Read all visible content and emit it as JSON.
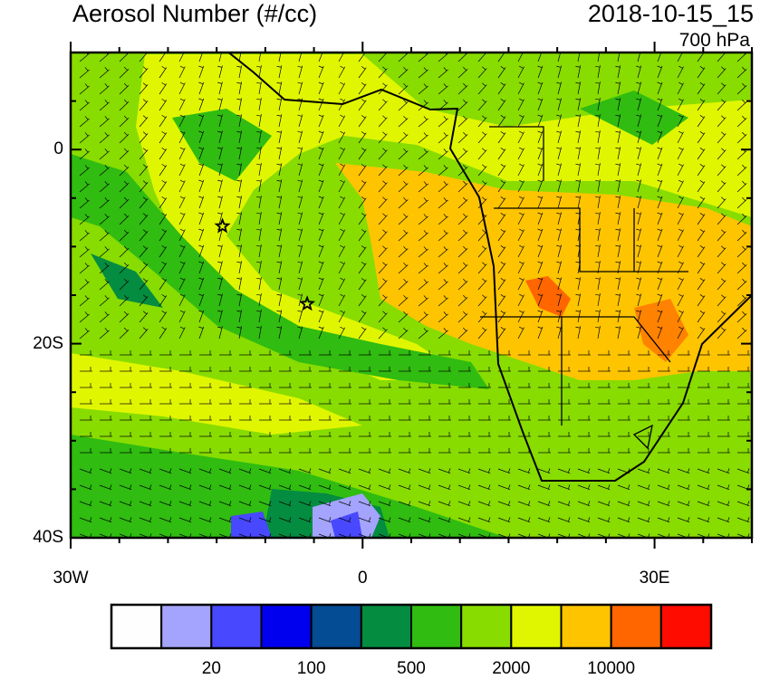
{
  "title": "Aerosol Number (#/cc)",
  "datetime": "2018-10-15_15",
  "level": "700 hPa",
  "map": {
    "lon_range": [
      -30,
      40
    ],
    "lat_range": [
      -40,
      10
    ],
    "x_tick_labels": [
      {
        "lon": -30,
        "label": "30W"
      },
      {
        "lon": 0,
        "label": "0"
      },
      {
        "lon": 30,
        "label": "30E"
      }
    ],
    "y_tick_labels": [
      {
        "lat": 0,
        "label": "0"
      },
      {
        "lat": -20,
        "label": "20S"
      },
      {
        "lat": -40,
        "label": "40S"
      }
    ],
    "markers": [
      {
        "type": "star",
        "lon": -14.4,
        "lat": -7.9
      },
      {
        "type": "star",
        "lon": -5.7,
        "lat": -15.9
      }
    ],
    "overlay": "wind barbs"
  },
  "colorbar": {
    "colors": [
      "#fefefe",
      "#a4a4fe",
      "#4848fe",
      "#0000ee",
      "#044c94",
      "#048c40",
      "#30bc10",
      "#88dc00",
      "#e0f600",
      "#ffc400",
      "#ff6600",
      "#ff0c00"
    ],
    "labels": [
      {
        "boundary": 2,
        "text": "20"
      },
      {
        "boundary": 4,
        "text": "100"
      },
      {
        "boundary": 6,
        "text": "500"
      },
      {
        "boundary": 8,
        "text": "2000"
      },
      {
        "boundary": 10,
        "text": "10000"
      }
    ]
  }
}
